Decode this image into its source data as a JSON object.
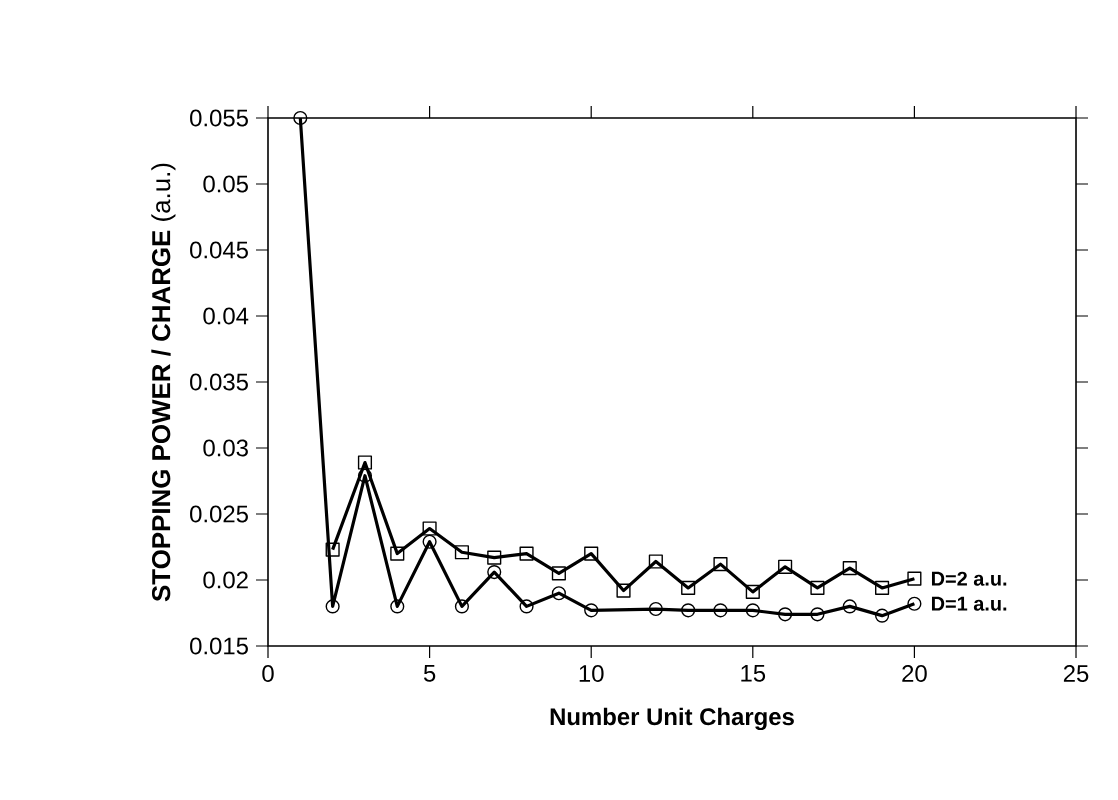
{
  "chart_data": {
    "type": "line",
    "xlabel": "Number Unit Charges",
    "ylabel": "**STOPPING POWER / CHARGE** (a.u.)",
    "xlim": [
      0,
      25
    ],
    "xticks": [
      0,
      5,
      10,
      15,
      20,
      25
    ],
    "ylim": [
      0.015,
      0.055
    ],
    "yticks": [
      0.015,
      0.02,
      0.025,
      0.03,
      0.035,
      0.04,
      0.045,
      0.05,
      0.055
    ],
    "series": [
      {
        "name": "D=2 a.u.",
        "color": "#000000",
        "marker": "square",
        "x": [
          2,
          3,
          4,
          5,
          6,
          7,
          8,
          9,
          10,
          11,
          12,
          13,
          14,
          15,
          16,
          17,
          18,
          19,
          20
        ],
        "values": [
          0.0223,
          0.0289,
          0.022,
          0.0239,
          0.0221,
          0.0217,
          0.022,
          0.0205,
          0.022,
          0.0192,
          0.0214,
          0.0194,
          0.0212,
          0.0191,
          0.021,
          0.0194,
          0.0209,
          0.0194,
          0.0201
        ]
      },
      {
        "name": "D=1 a.u.",
        "color": "#000000",
        "marker": "circle",
        "x": [
          1,
          2,
          3,
          4,
          5,
          6,
          7,
          8,
          9,
          10,
          12,
          13,
          14,
          15,
          16,
          17,
          18,
          19,
          20
        ],
        "values": [
          0.055,
          0.018,
          0.0279,
          0.018,
          0.0229,
          0.018,
          0.0206,
          0.018,
          0.019,
          0.0177,
          0.0178,
          0.0177,
          0.0177,
          0.0177,
          0.0174,
          0.0174,
          0.018,
          0.0173,
          0.0182
        ]
      }
    ]
  }
}
